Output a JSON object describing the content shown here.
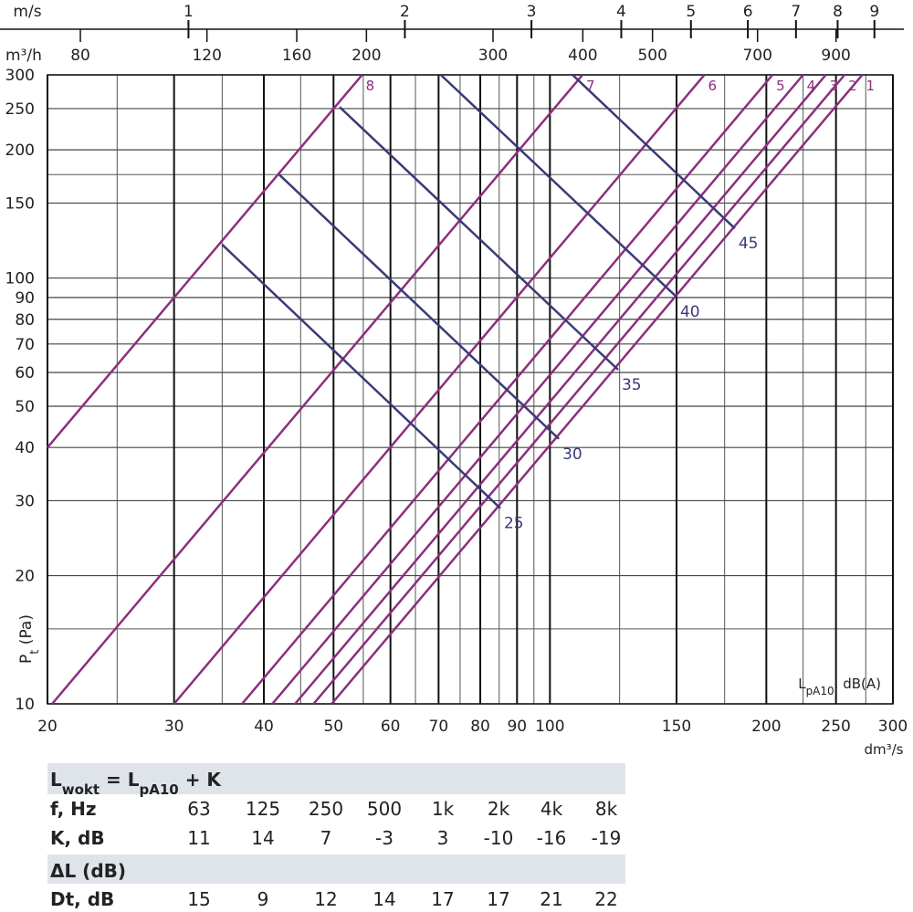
{
  "chart_data": {
    "type": "line",
    "xscale": "log",
    "yscale": "log",
    "xlim": [
      20,
      300
    ],
    "ylim": [
      10,
      300
    ],
    "xticks": [
      20,
      30,
      40,
      50,
      60,
      70,
      80,
      90,
      100,
      150,
      200,
      250,
      300
    ],
    "yticks": [
      10,
      20,
      30,
      40,
      50,
      60,
      70,
      80,
      90,
      100,
      150,
      200,
      250,
      300
    ],
    "xminor": [
      25,
      35,
      45,
      55,
      65,
      75,
      85,
      95,
      125,
      175,
      225,
      275
    ],
    "yminor": [
      15,
      175
    ],
    "xlabel": "dm³/s",
    "ylabel": [
      "P",
      "t",
      " (Pa)"
    ],
    "x2label": "m/s",
    "x2lim": [
      0.6366,
      9.549
    ],
    "x2ticks": [
      1,
      2,
      3,
      4,
      5,
      6,
      7,
      8,
      9
    ],
    "x3label": "m³/h",
    "x3lim": [
      72,
      1080
    ],
    "x3ticks": [
      80,
      120,
      160,
      200,
      300,
      400,
      500,
      700,
      900
    ],
    "legend_label": [
      "L",
      "pA10",
      ", dB(A)"
    ],
    "series": [
      {
        "name": "1",
        "color": "#8b2f7d",
        "x": [
          49.7,
          272
        ],
        "values": [
          10,
          300
        ]
      },
      {
        "name": "2",
        "color": "#8b2f7d",
        "x": [
          46.9,
          257
        ],
        "values": [
          10,
          300
        ]
      },
      {
        "name": "3",
        "color": "#8b2f7d",
        "x": [
          44.2,
          242
        ],
        "values": [
          10,
          300
        ]
      },
      {
        "name": "4",
        "color": "#8b2f7d",
        "x": [
          41.1,
          225
        ],
        "values": [
          10,
          300
        ]
      },
      {
        "name": "5",
        "color": "#8b2f7d",
        "x": [
          37.3,
          204
        ],
        "values": [
          10,
          300
        ]
      },
      {
        "name": "6",
        "color": "#8b2f7d",
        "x": [
          30,
          164
        ],
        "values": [
          10,
          300
        ]
      },
      {
        "name": "7",
        "color": "#8b2f7d",
        "x": [
          20.3,
          111
        ],
        "values": [
          10,
          300
        ]
      },
      {
        "name": "8",
        "color": "#8b2f7d",
        "x": [
          20,
          54.8
        ],
        "values": [
          40,
          300
        ]
      },
      {
        "name": "25",
        "color": "#3a3a78",
        "x": [
          35,
          85.3
        ],
        "values": [
          119.8,
          28.8
        ]
      },
      {
        "name": "30",
        "color": "#3a3a78",
        "x": [
          42,
          102.9
        ],
        "values": [
          175,
          41.9
        ]
      },
      {
        "name": "35",
        "color": "#3a3a78",
        "x": [
          51,
          124.4
        ],
        "values": [
          252,
          60.9
        ]
      },
      {
        "name": "40",
        "color": "#3a3a78",
        "x": [
          70.5,
          150
        ],
        "values": [
          300,
          90.3
        ]
      },
      {
        "name": "45",
        "color": "#3a3a78",
        "x": [
          107.5,
          180.8
        ],
        "values": [
          300,
          130.8
        ]
      }
    ],
    "table": {
      "title": [
        "L",
        "wokt",
        " = L",
        "pA10",
        " + K"
      ],
      "rows": [
        [
          "f, Hz",
          "63",
          "125",
          "250",
          "500",
          "1k",
          "2k",
          "4k",
          "8k"
        ],
        [
          "K, dB",
          11,
          14,
          7,
          -3,
          3,
          -10,
          -16,
          -19
        ]
      ],
      "subtitle": "ΔL (dB)",
      "rows2": [
        [
          "Dt, dB",
          15,
          9,
          12,
          14,
          17,
          17,
          21,
          22
        ]
      ]
    }
  }
}
